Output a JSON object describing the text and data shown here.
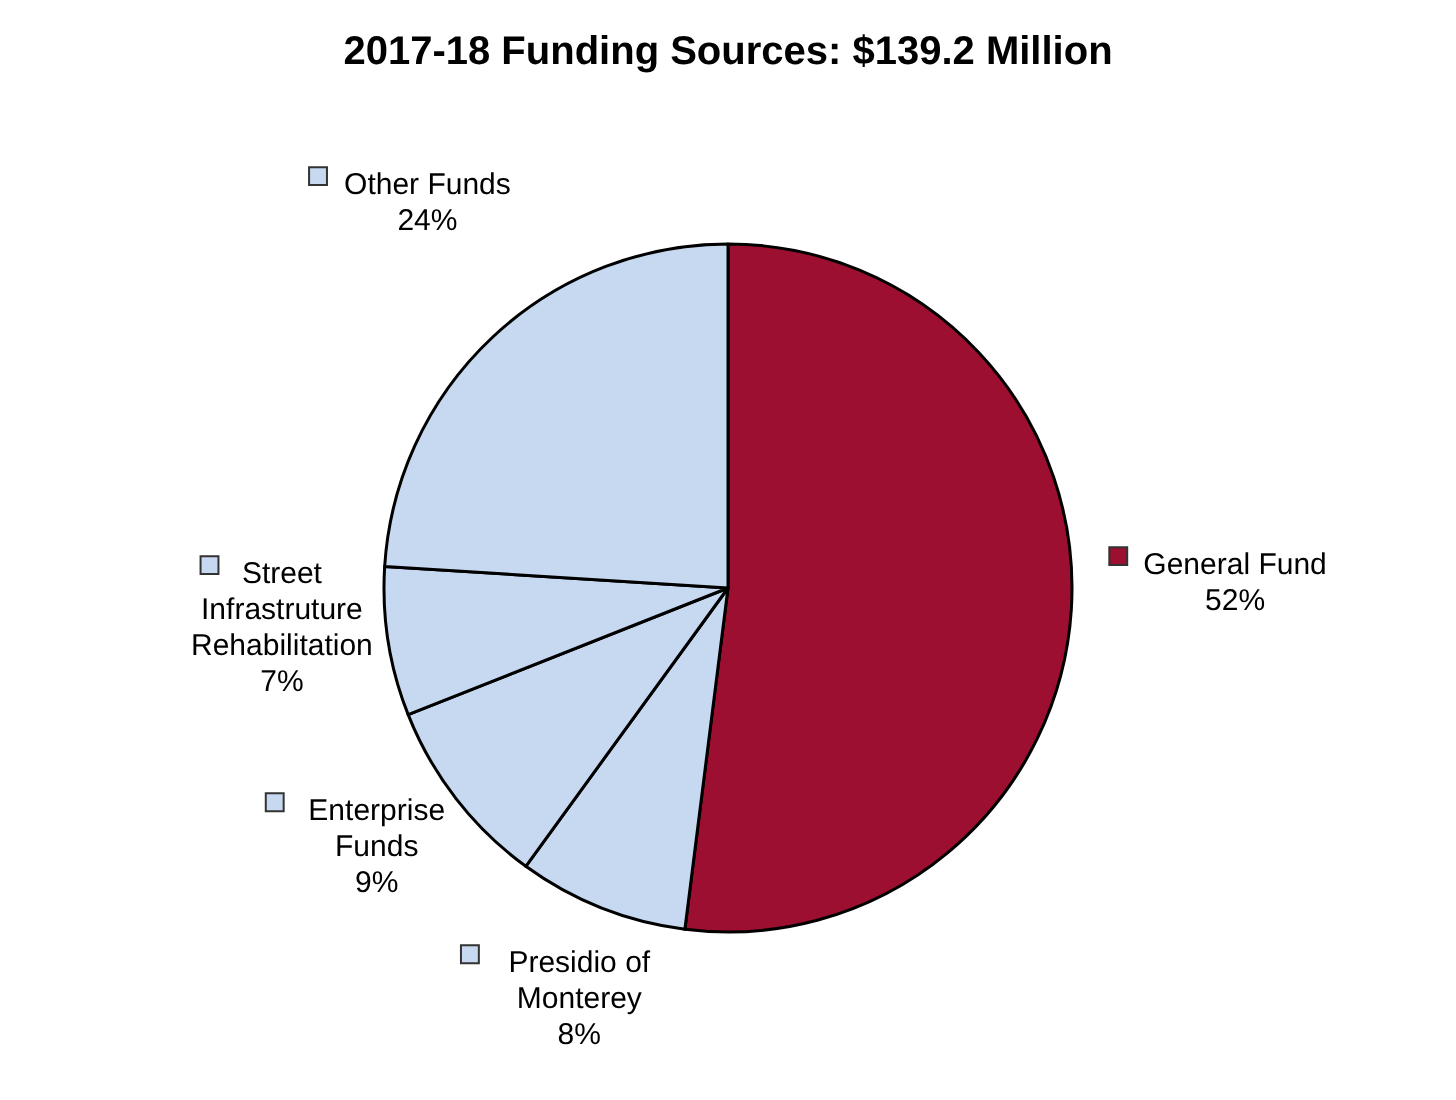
{
  "chart_data": {
    "type": "pie",
    "title": "2017-18 Funding Sources: $139.2 Million",
    "categories": [
      "General Fund",
      "Presidio of Monterey",
      "Enterprise Funds",
      "Street Infrastruture Rehabilitation",
      "Other Funds"
    ],
    "values": [
      52,
      8,
      9,
      7,
      24
    ],
    "value_labels": [
      "52%",
      "8%",
      "9%",
      "7%",
      "24%"
    ],
    "colors": [
      "#9c0f30",
      "#c6d9f0",
      "#c6d9f0",
      "#c6d9f0",
      "#c6d9f0"
    ],
    "legend": "left"
  }
}
